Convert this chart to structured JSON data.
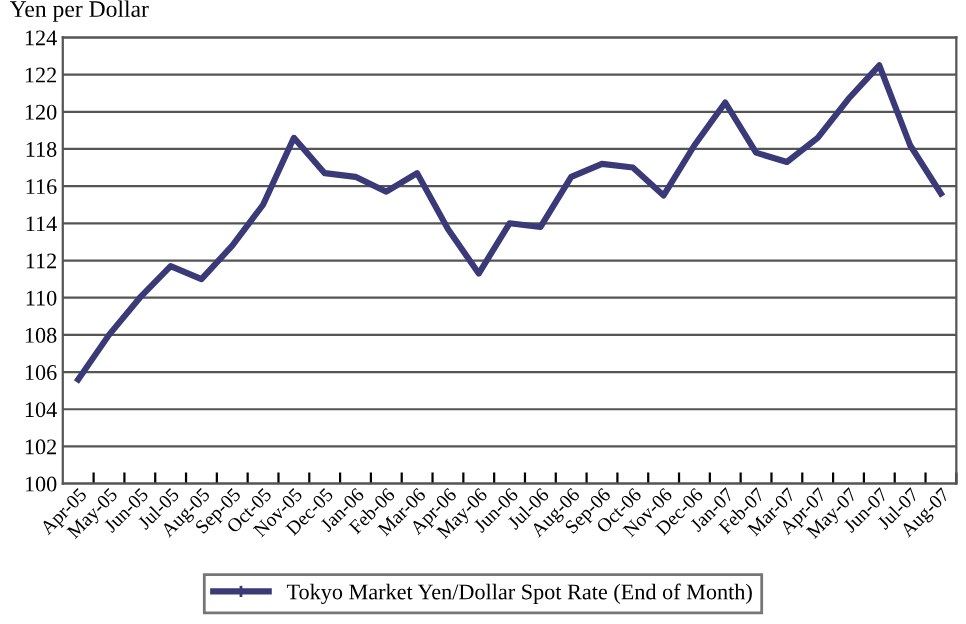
{
  "chart_data": {
    "type": "line",
    "ylabel": "Yen per Dollar",
    "categories": [
      "Apr-05",
      "May-05",
      "Jun-05",
      "Jul-05",
      "Aug-05",
      "Sep-05",
      "Oct-05",
      "Nov-05",
      "Dec-05",
      "Jan-06",
      "Feb-06",
      "Mar-06",
      "Apr-06",
      "May-06",
      "Jun-06",
      "Jul-06",
      "Aug-06",
      "Sep-06",
      "Oct-06",
      "Nov-06",
      "Dec-06",
      "Jan-07",
      "Feb-07",
      "Mar-07",
      "Apr-07",
      "May-07",
      "Jun-07",
      "Jul-07",
      "Aug-07"
    ],
    "series": [
      {
        "name": "Tokyo Market Yen/Dollar Spot Rate (End of Month)",
        "color": "#3a3a78",
        "values": [
          105.6,
          108.0,
          110.0,
          111.7,
          111.0,
          112.8,
          115.0,
          118.6,
          116.7,
          116.5,
          115.7,
          116.7,
          113.7,
          111.3,
          114.0,
          113.8,
          116.5,
          117.2,
          117.0,
          115.5,
          118.2,
          120.5,
          117.8,
          117.3,
          118.6,
          120.7,
          122.5,
          118.2,
          115.6
        ]
      }
    ],
    "ylim": [
      100,
      124
    ],
    "yticks": [
      100,
      102,
      104,
      106,
      108,
      110,
      112,
      114,
      116,
      118,
      120,
      122,
      124
    ],
    "grid": "y",
    "legend": "bottom",
    "line_style": "solid",
    "marker": "none"
  }
}
